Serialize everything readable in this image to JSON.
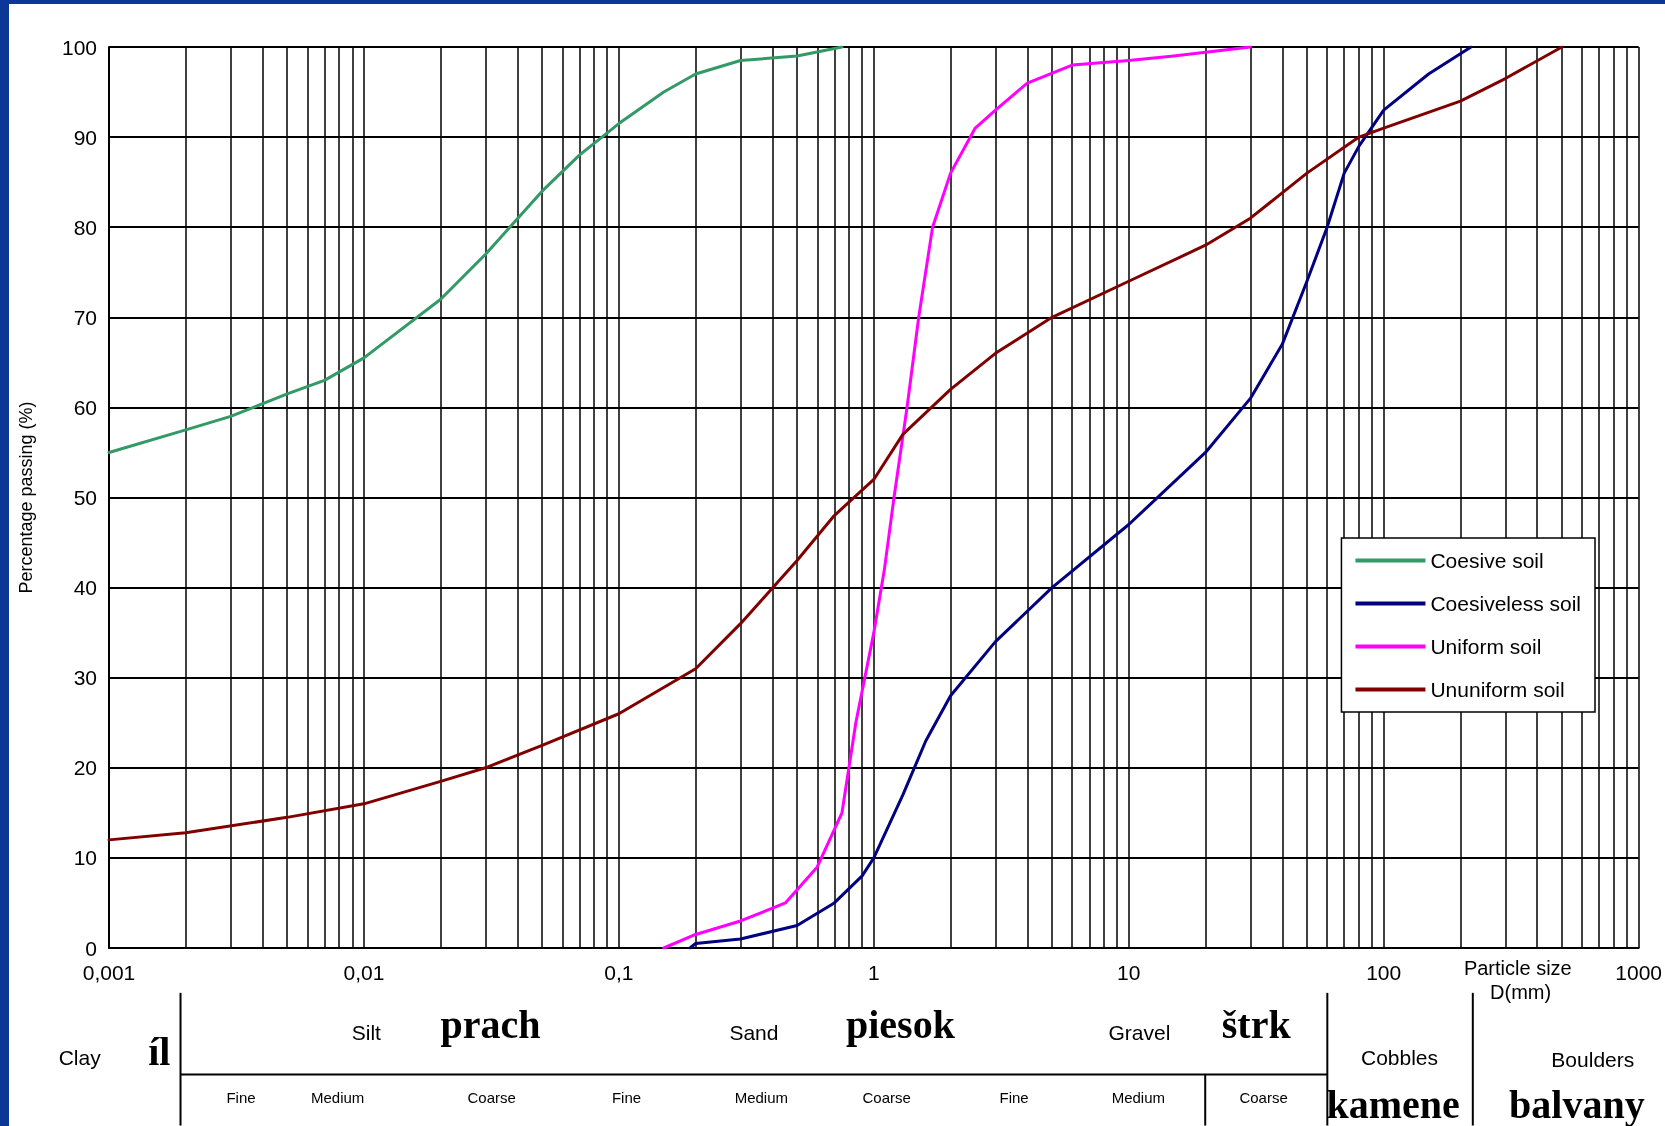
{
  "chart_data": {
    "type": "line",
    "xlabel": "Particle size D(mm)",
    "ylabel": "Percentage passing (%)",
    "log": "x",
    "grid": true,
    "legend": "right",
    "marker": "none",
    "line_style": "solid",
    "xlim": [
      0.001,
      1000
    ],
    "ylim": [
      0,
      100
    ],
    "yticks": [
      0,
      10,
      20,
      30,
      40,
      50,
      60,
      70,
      80,
      90,
      100
    ],
    "xticks": [
      {
        "value": 0.001,
        "label": "0,001"
      },
      {
        "value": 0.002,
        "label": null
      },
      {
        "value": 0.003,
        "label": null
      },
      {
        "value": 0.004,
        "label": null
      },
      {
        "value": 0.005,
        "label": null
      },
      {
        "value": 0.006,
        "label": null
      },
      {
        "value": 0.007,
        "label": null
      },
      {
        "value": 0.008,
        "label": null
      },
      {
        "value": 0.009,
        "label": null
      },
      {
        "value": 0.01,
        "label": "0,01"
      },
      {
        "value": 0.02,
        "label": null
      },
      {
        "value": 0.03,
        "label": null
      },
      {
        "value": 0.04,
        "label": null
      },
      {
        "value": 0.05,
        "label": null
      },
      {
        "value": 0.06,
        "label": null
      },
      {
        "value": 0.07,
        "label": null
      },
      {
        "value": 0.08,
        "label": null
      },
      {
        "value": 0.09,
        "label": null
      },
      {
        "value": 0.1,
        "label": "0,1"
      },
      {
        "value": 0.2,
        "label": null
      },
      {
        "value": 0.3,
        "label": null
      },
      {
        "value": 0.4,
        "label": null
      },
      {
        "value": 0.5,
        "label": null
      },
      {
        "value": 0.6,
        "label": null
      },
      {
        "value": 0.7,
        "label": null
      },
      {
        "value": 0.8,
        "label": null
      },
      {
        "value": 0.9,
        "label": null
      },
      1,
      {
        "value": 2,
        "label": null
      },
      {
        "value": 3,
        "label": null
      },
      {
        "value": 4,
        "label": null
      },
      {
        "value": 5,
        "label": null
      },
      {
        "value": 6,
        "label": null
      },
      {
        "value": 7,
        "label": null
      },
      {
        "value": 8,
        "label": null
      },
      {
        "value": 9,
        "label": null
      },
      10,
      {
        "value": 20,
        "label": null
      },
      {
        "value": 30,
        "label": null
      },
      {
        "value": 40,
        "label": null
      },
      {
        "value": 50,
        "label": null
      },
      {
        "value": 60,
        "label": null
      },
      {
        "value": 70,
        "label": null
      },
      {
        "value": 80,
        "label": null
      },
      {
        "value": 90,
        "label": null
      },
      100,
      {
        "value": 200,
        "label": null
      },
      {
        "value": 300,
        "label": null
      },
      {
        "value": 400,
        "label": null
      },
      {
        "value": 500,
        "label": null
      },
      {
        "value": 600,
        "label": null
      },
      {
        "value": 700,
        "label": null
      },
      {
        "value": 800,
        "label": null
      },
      {
        "value": 900,
        "label": null
      },
      1000
    ],
    "series": [
      {
        "name": "Coesive soil",
        "color": "#339966",
        "x": [
          0.001,
          0.002,
          0.003,
          0.005,
          0.007,
          0.01,
          0.02,
          0.03,
          0.05,
          0.07,
          0.1,
          0.15,
          0.2,
          0.3,
          0.5,
          0.75
        ],
        "values": [
          55,
          57.5,
          59,
          61.5,
          63,
          65.5,
          72,
          77,
          84,
          88,
          91.5,
          95,
          97,
          98.5,
          99,
          100
        ]
      },
      {
        "name": "Coesiveless soil",
        "color": "#000080",
        "x": [
          0.19,
          0.2,
          0.3,
          0.5,
          0.7,
          0.9,
          1,
          1.3,
          1.6,
          2,
          3,
          5,
          10,
          20,
          30,
          40,
          50,
          60,
          70,
          80,
          100,
          150,
          220
        ],
        "values": [
          0,
          0.5,
          1,
          2.5,
          5,
          8,
          10,
          17,
          23,
          28,
          34,
          40,
          47,
          55,
          61,
          67,
          74,
          80,
          86,
          89,
          93,
          97,
          100
        ]
      },
      {
        "name": "Uniform soil",
        "color": "#ff00ff",
        "x": [
          0.15,
          0.2,
          0.3,
          0.45,
          0.6,
          0.75,
          0.85,
          1,
          1.1,
          1.2,
          1.35,
          1.5,
          1.7,
          2,
          2.5,
          3,
          4,
          6,
          10,
          15,
          30
        ],
        "values": [
          0,
          1.5,
          3,
          5,
          9,
          15,
          25,
          35,
          42,
          50,
          60,
          70,
          80,
          86,
          91,
          93,
          96,
          98,
          98.5,
          99,
          100
        ]
      },
      {
        "name": "Ununiform soil",
        "color": "#800000",
        "x": [
          0.001,
          0.002,
          0.005,
          0.01,
          0.02,
          0.03,
          0.05,
          0.1,
          0.2,
          0.3,
          0.5,
          0.7,
          1,
          1.3,
          2,
          3,
          5,
          10,
          20,
          30,
          50,
          80,
          100,
          200,
          300,
          500
        ],
        "values": [
          12,
          12.8,
          14.5,
          16,
          18.5,
          20,
          22.5,
          26,
          31,
          36,
          43,
          48,
          52,
          57,
          62,
          66,
          70,
          74,
          78,
          81,
          86,
          90,
          91,
          94,
          96.5,
          100
        ]
      }
    ],
    "annotations": [
      "Clay",
      "íl",
      "Silt",
      "prach",
      "Sand",
      "piesok",
      "Gravel",
      "štrk",
      "Cobbles",
      "kamene",
      "Boulders",
      "balvany",
      "Fine",
      "Medium",
      "Coarse",
      "Fine",
      "Medium",
      "Coarse",
      "Fine",
      "Medium",
      "Coarse"
    ]
  }
}
